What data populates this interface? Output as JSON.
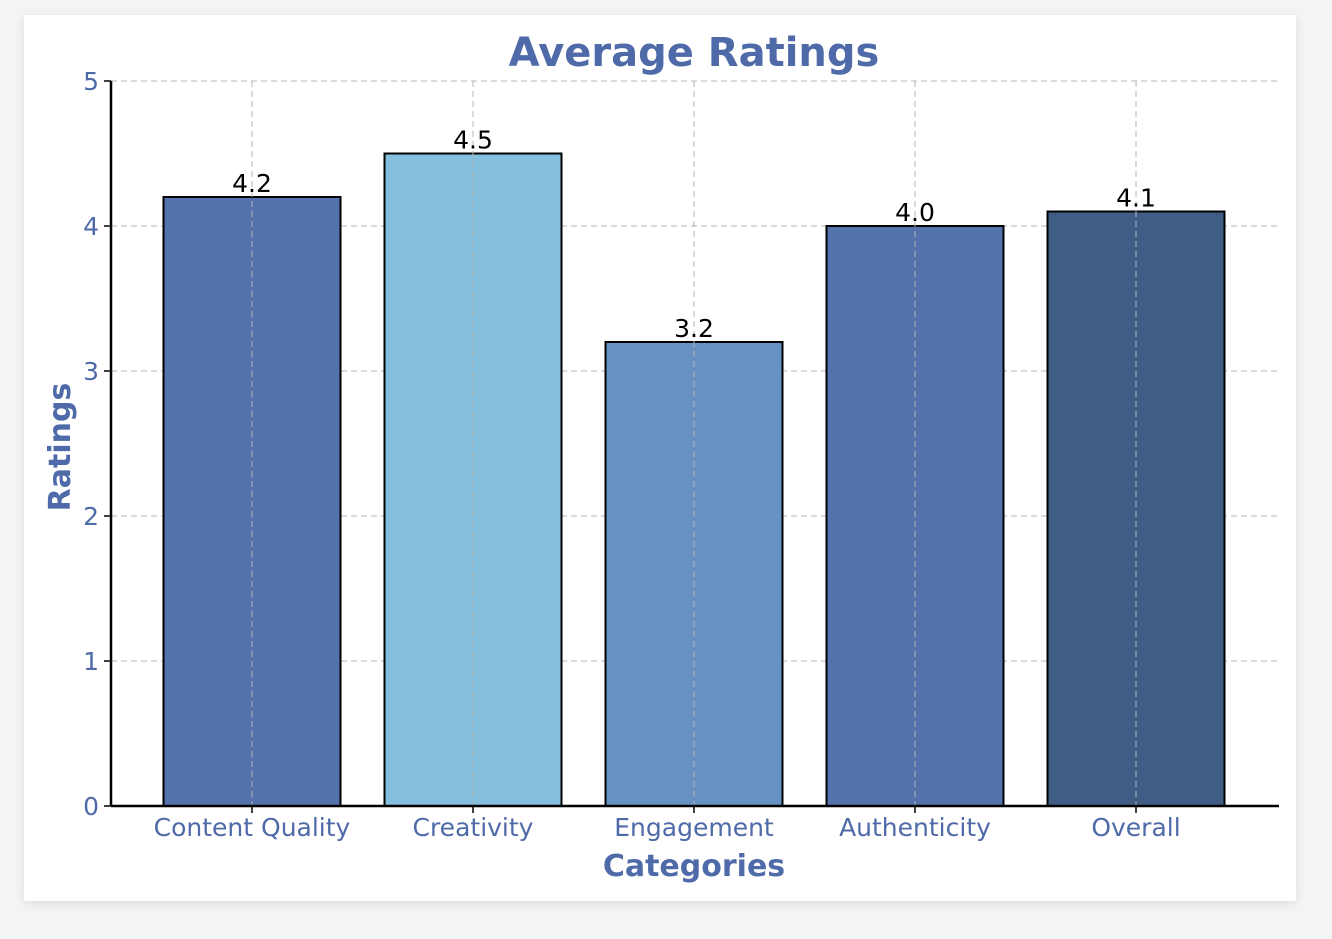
{
  "chart_data": {
    "type": "bar",
    "title": "Average Ratings",
    "xlabel": "Categories",
    "ylabel": "Ratings",
    "categories": [
      "Content Quality",
      "Creativity",
      "Engagement",
      "Authenticity",
      "Overall"
    ],
    "values": [
      4.2,
      4.5,
      3.2,
      4.0,
      4.1
    ],
    "value_labels": [
      "4.2",
      "4.5",
      "3.2",
      "4.0",
      "4.1"
    ],
    "ylim": [
      0,
      5
    ],
    "yticks": [
      0,
      1,
      2,
      3,
      4,
      5
    ],
    "grid": true,
    "bar_colors": [
      "#5472ac",
      "#84c0dd",
      "#6891c3",
      "#5472ac",
      "#405d86"
    ],
    "text_color": "#4f6aa8"
  }
}
